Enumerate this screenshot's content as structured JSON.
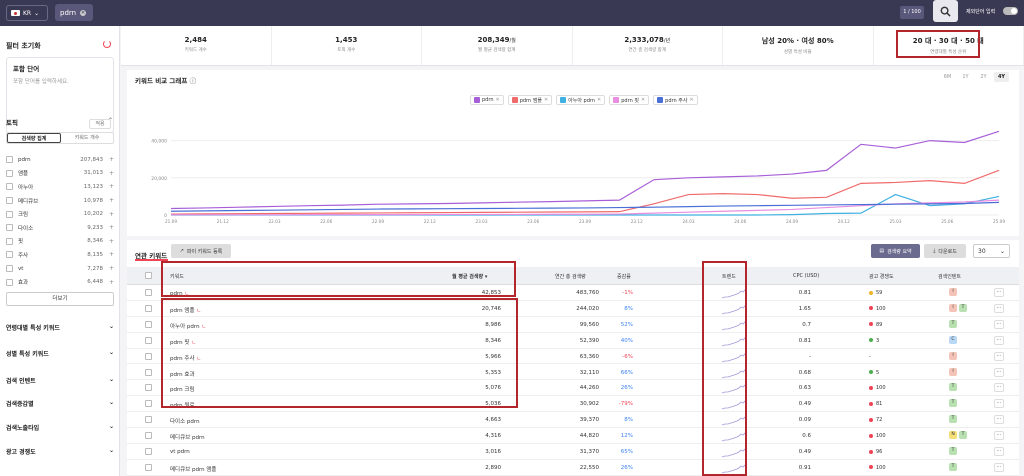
{
  "topbar": {
    "country": "KR",
    "query": "pdrn",
    "counter": "1 / 100",
    "exclude_label": "제외단어 입력"
  },
  "sidebar": {
    "title": "필터 초기화",
    "include": {
      "title": "포함 단어",
      "placeholder": "포함 단어를 입력하세요.",
      "apply": "적용"
    },
    "topic": {
      "title": "토픽",
      "tab_search": "검색량 집계",
      "tab_count": "키워드 개수"
    },
    "topics": [
      {
        "name": "pdrn",
        "count": "207,843"
      },
      {
        "name": "앰플",
        "count": "31,013"
      },
      {
        "name": "아누아",
        "count": "13,123"
      },
      {
        "name": "메디큐브",
        "count": "10,978"
      },
      {
        "name": "크림",
        "count": "10,202"
      },
      {
        "name": "다이소",
        "count": "9,233"
      },
      {
        "name": "핏",
        "count": "8,346"
      },
      {
        "name": "주사",
        "count": "8,135"
      },
      {
        "name": "vt",
        "count": "7,278"
      },
      {
        "name": "효과",
        "count": "6,448"
      }
    ],
    "more": "더보기",
    "sections": [
      "연령대별 특성 키워드",
      "성별 특성 키워드",
      "검색 인텐트",
      "검색증감별",
      "검색노출타입",
      "광고 경쟁도"
    ]
  },
  "stats": [
    {
      "value": "2,484",
      "unit": "",
      "label": "키워드 개수"
    },
    {
      "value": "1,453",
      "unit": "",
      "label": "토픽 개수"
    },
    {
      "value": "208,349",
      "unit": "/월",
      "label": "월 평균 검색량 합계"
    },
    {
      "value": "2,333,078",
      "unit": "/년",
      "label": "연간 총 검색량 합계"
    },
    {
      "value": "남성 20% · 여성 80%",
      "unit": "",
      "label": "성별 특성 비율"
    },
    {
      "value": "20 대 · 30 대 · 50 대",
      "unit": "",
      "label": "연령대별 특성 순위"
    }
  ],
  "graph": {
    "title": "키워드 비교 그래프",
    "ranges": [
      "6M",
      "1Y",
      "2Y",
      "4Y"
    ],
    "active_range": "4Y",
    "legend": [
      {
        "name": "pdrn",
        "color": "#a75fd8"
      },
      {
        "name": "pdrn 앰플",
        "color": "#ef6b6b"
      },
      {
        "name": "아누아 pdrn",
        "color": "#3fb0e0"
      },
      {
        "name": "pdrn 핏",
        "color": "#e98ee0"
      },
      {
        "name": "pdrn 주사",
        "color": "#4a6fd6"
      }
    ]
  },
  "chart_data": {
    "type": "line",
    "y_ticks": [
      "40,000",
      "20,000",
      "0"
    ],
    "ylim": [
      0,
      50000
    ],
    "x": [
      "21.09",
      "21.11",
      "22.01",
      "22.03",
      "22.05",
      "22.07",
      "22.09",
      "22.11",
      "23.01",
      "23.03",
      "23.05",
      "23.07",
      "23.09",
      "23.11",
      "24.01",
      "24.03",
      "24.05",
      "24.07",
      "24.09",
      "24.11",
      "25.01",
      "25.03",
      "25.05",
      "25.07",
      "25.09"
    ],
    "x_ticks": [
      "21.09",
      "21.12",
      "22.03",
      "22.06",
      "22.09",
      "22.12",
      "23.03",
      "23.06",
      "23.09",
      "23.12",
      "24.03",
      "24.06",
      "24.09",
      "24.12",
      "25.03",
      "25.06",
      "25.09"
    ],
    "series": [
      {
        "name": "pdrn",
        "color": "#a75fd8",
        "values": [
          3500,
          3800,
          4200,
          4600,
          5000,
          5300,
          5800,
          6000,
          6200,
          6500,
          6900,
          7200,
          7600,
          8000,
          19000,
          20000,
          20500,
          21000,
          22000,
          24000,
          38000,
          36000,
          40000,
          39000,
          45000
        ]
      },
      {
        "name": "pdrn 앰플",
        "color": "#ef6b6b",
        "values": [
          500,
          600,
          700,
          800,
          900,
          1000,
          1100,
          1200,
          1300,
          1400,
          1500,
          1600,
          1700,
          1800,
          6000,
          11000,
          11500,
          11000,
          9000,
          9500,
          17000,
          17500,
          18500,
          17000,
          24000
        ]
      },
      {
        "name": "아누아 pdrn",
        "color": "#3fb0e0",
        "values": [
          0,
          0,
          0,
          0,
          0,
          0,
          0,
          0,
          0,
          0,
          0,
          0,
          0,
          0,
          0,
          0,
          0,
          0,
          200,
          800,
          1000,
          11000,
          5000,
          6000,
          10000
        ]
      },
      {
        "name": "pdrn 핏",
        "color": "#e98ee0",
        "values": [
          100,
          100,
          100,
          100,
          200,
          200,
          200,
          200,
          300,
          300,
          300,
          400,
          400,
          500,
          1000,
          1500,
          2000,
          2500,
          3000,
          4000,
          5000,
          6000,
          6500,
          7000,
          8000
        ]
      },
      {
        "name": "pdrn 주사",
        "color": "#4a6fd6",
        "values": [
          2000,
          2200,
          2400,
          2600,
          2800,
          3000,
          3200,
          3300,
          3400,
          3500,
          3600,
          3700,
          3800,
          4000,
          4200,
          4500,
          4800,
          5000,
          5200,
          5400,
          5600,
          5800,
          6000,
          6200,
          6800
        ]
      }
    ]
  },
  "related": {
    "title": "연관 키워드",
    "register": "파이 키워드 등록",
    "summary": "검색량 요약",
    "download": "다운로드",
    "per_page": "30",
    "headers": {
      "keyword": "키워드",
      "monthly": "월 평균 검색량 ▾",
      "yearly": "연간 총 검색량",
      "change": "증감률",
      "trend": "트렌드",
      "cpc": "CPC (USD)",
      "ad": "광고 경쟁도",
      "intent": "검색인텐트"
    },
    "rows": [
      {
        "keyword": "pdrn",
        "tv": "ㄴ",
        "monthly": "42,853",
        "yearly": "483,760",
        "change": "-1%",
        "dir": "down",
        "cpc": "0.81",
        "ad": "59",
        "adc": "#f0b429",
        "intent": [
          [
            "I",
            "#f5c4b8"
          ]
        ]
      },
      {
        "keyword": "pdrn 앰플",
        "tv": "ㄴ",
        "monthly": "20,746",
        "yearly": "244,020",
        "change": "8%",
        "dir": "up",
        "cpc": "1.65",
        "ad": "100",
        "adc": "#e45",
        "intent": [
          [
            "I",
            "#f5c4b8"
          ],
          [
            "T",
            "#b8e0b0"
          ]
        ]
      },
      {
        "keyword": "아누아 pdrn",
        "tv": "ㄴ",
        "monthly": "8,986",
        "yearly": "99,560",
        "change": "52%",
        "dir": "up",
        "cpc": "0.7",
        "ad": "89",
        "adc": "#e45",
        "intent": [
          [
            "T",
            "#b8e0b0"
          ]
        ]
      },
      {
        "keyword": "pdrn 핏",
        "tv": "ㄴ",
        "monthly": "8,346",
        "yearly": "52,390",
        "change": "40%",
        "dir": "up",
        "cpc": "0.81",
        "ad": "3",
        "adc": "#4caf50",
        "intent": [
          [
            "C",
            "#b8d8f5"
          ]
        ]
      },
      {
        "keyword": "pdrn 주사",
        "tv": "ㄴ",
        "monthly": "5,966",
        "yearly": "63,360",
        "change": "-6%",
        "dir": "down",
        "cpc": "-",
        "ad": "-",
        "adc": "",
        "intent": [
          [
            "I",
            "#f5c4b8"
          ]
        ]
      },
      {
        "keyword": "pdrn 효과",
        "tv": "",
        "monthly": "5,353",
        "yearly": "32,110",
        "change": "66%",
        "dir": "up",
        "cpc": "0.68",
        "ad": "5",
        "adc": "#4caf50",
        "intent": [
          [
            "I",
            "#f5c4b8"
          ]
        ]
      },
      {
        "keyword": "pdrn 크림",
        "tv": "",
        "monthly": "5,076",
        "yearly": "44,260",
        "change": "26%",
        "dir": "up",
        "cpc": "0.63",
        "ad": "100",
        "adc": "#e45",
        "intent": [
          [
            "T",
            "#b8e0b0"
          ]
        ]
      },
      {
        "keyword": "pdrn 원료",
        "tv": "",
        "monthly": "5,036",
        "yearly": "30,902",
        "change": "-79%",
        "dir": "down",
        "cpc": "0.49",
        "ad": "81",
        "adc": "#e45",
        "intent": [
          [
            "T",
            "#b8e0b0"
          ]
        ]
      },
      {
        "keyword": "다이소 pdrn",
        "tv": "",
        "monthly": "4,663",
        "yearly": "39,370",
        "change": "8%",
        "dir": "up",
        "cpc": "0.09",
        "ad": "72",
        "adc": "#e45",
        "intent": [
          [
            "T",
            "#b8e0b0"
          ]
        ]
      },
      {
        "keyword": "메디큐브 pdrn",
        "tv": "",
        "monthly": "4,316",
        "yearly": "44,820",
        "change": "12%",
        "dir": "up",
        "cpc": "0.6",
        "ad": "100",
        "adc": "#e45",
        "intent": [
          [
            "N",
            "#f5e07a"
          ],
          [
            "T",
            "#b8e0b0"
          ]
        ]
      },
      {
        "keyword": "vt pdrn",
        "tv": "",
        "monthly": "3,016",
        "yearly": "31,370",
        "change": "65%",
        "dir": "up",
        "cpc": "0.49",
        "ad": "96",
        "adc": "#e45",
        "intent": [
          [
            "T",
            "#b8e0b0"
          ]
        ]
      },
      {
        "keyword": "메디큐브 pdrn 앰플",
        "tv": "",
        "monthly": "2,890",
        "yearly": "22,550",
        "change": "26%",
        "dir": "up",
        "cpc": "0.91",
        "ad": "100",
        "adc": "#e45",
        "intent": [
          [
            "T",
            "#b8e0b0"
          ]
        ]
      }
    ]
  }
}
